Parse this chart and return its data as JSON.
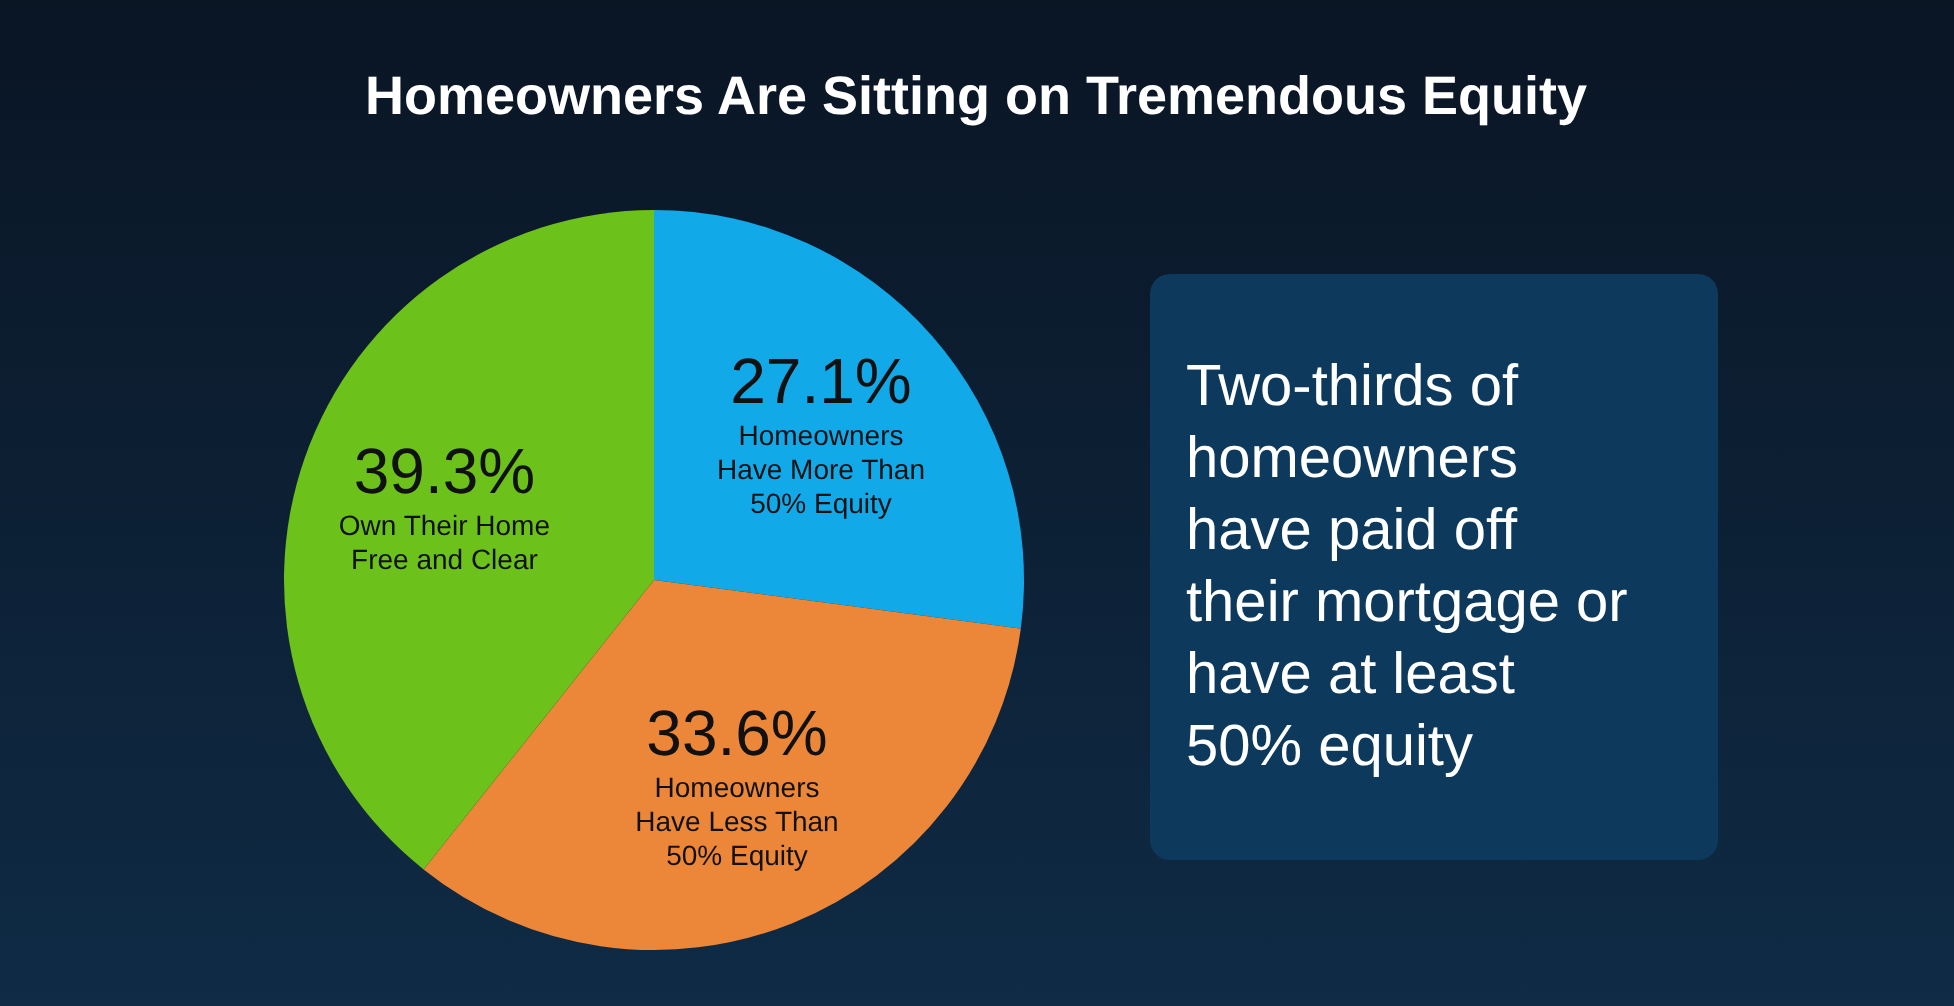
{
  "chart_data": {
    "type": "pie",
    "title": "Homeowners Are Sitting on Tremendous Equity",
    "categories": [
      "Homeowners Have More Than 50% Equity",
      "Homeowners Have Less Than 50% Equity",
      "Own Their Home Free and Clear"
    ],
    "values": [
      27.1,
      33.6,
      39.3
    ],
    "value_labels": [
      "27.1%",
      "33.6%",
      "39.3%"
    ],
    "colors": [
      "#12a9e8",
      "#ec873a",
      "#6cc11a"
    ],
    "annotations": [
      "Two-thirds of homeowners have paid off their mortgage or have at least 50% equity"
    ]
  }
}
